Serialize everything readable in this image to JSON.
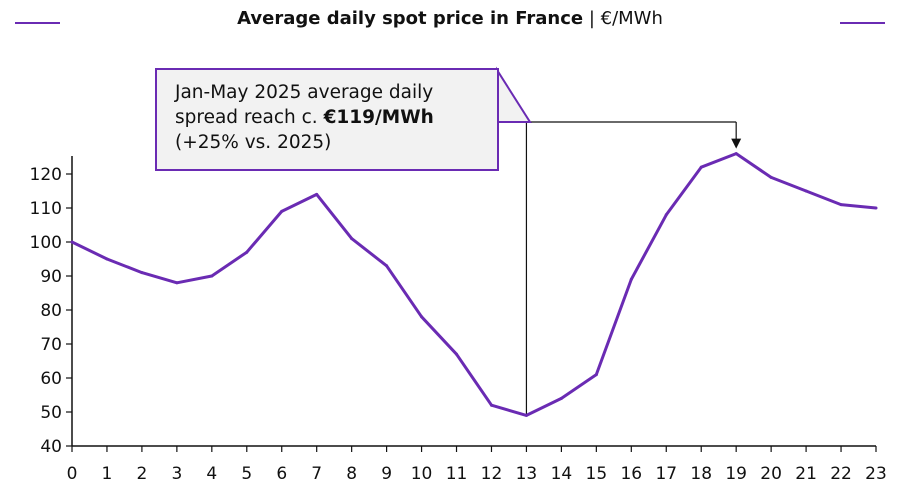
{
  "title": {
    "main": "Average daily spot price in France",
    "separator": " | ",
    "unit": "€/MWh"
  },
  "annotation": {
    "line1": "Jan-May 2025 average daily",
    "line2_prefix": "spread reach c. ",
    "line2_bold": "€119/MWh",
    "line3": "(+25% vs. 2025)"
  },
  "colors": {
    "series": "#6a2bb3",
    "axis": "#111111"
  },
  "chart_data": {
    "type": "line",
    "x": [
      0,
      1,
      2,
      3,
      4,
      5,
      6,
      7,
      8,
      9,
      10,
      11,
      12,
      13,
      14,
      15,
      16,
      17,
      18,
      19,
      20,
      21,
      22,
      23
    ],
    "series": [
      {
        "values": [
          100,
          95,
          91,
          88,
          90,
          97,
          109,
          114,
          101,
          93,
          78,
          67,
          52,
          49,
          54,
          61,
          89,
          108,
          122,
          126,
          119,
          115,
          111,
          110
        ]
      }
    ],
    "ylim": [
      40,
      120
    ],
    "yticks": [
      40,
      50,
      60,
      70,
      80,
      90,
      100,
      110,
      120
    ],
    "xticks": [
      "0",
      "1",
      "2",
      "3",
      "4",
      "5",
      "6",
      "7",
      "8",
      "9",
      "10",
      "11",
      "12",
      "13",
      "14",
      "15",
      "16",
      "17",
      "18",
      "19",
      "20",
      "21",
      "22",
      "23"
    ],
    "grid": false,
    "xlabel": "",
    "ylabel": ""
  }
}
